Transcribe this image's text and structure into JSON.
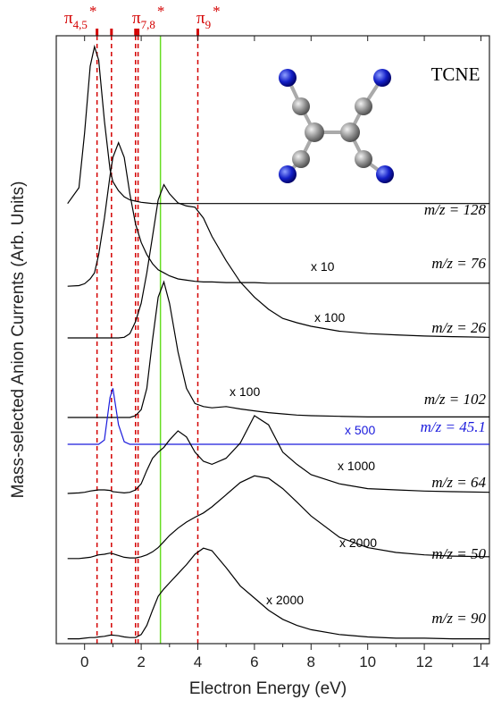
{
  "chart_data": {
    "type": "line",
    "molecule": "TCNE",
    "xlabel": "Electron Energy (eV)",
    "ylabel": "Mass-selected Anion Currents (Arb. Units)",
    "xlim": [
      -1,
      14.3
    ],
    "ylim": [
      0,
      100
    ],
    "xticks": [
      0,
      2,
      4,
      6,
      8,
      10,
      12,
      14
    ],
    "xticks_minor": [
      1,
      3,
      5,
      7,
      9,
      11,
      13
    ],
    "x": [
      -0.6,
      -0.2,
      0,
      0.2,
      0.35,
      0.5,
      0.7,
      0.9,
      1.0,
      1.2,
      1.4,
      1.6,
      1.8,
      2.0,
      2.2,
      2.4,
      2.6,
      2.8,
      3.0,
      3.3,
      3.6,
      3.9,
      4.2,
      4.5,
      5,
      5.5,
      6,
      6.5,
      7,
      7.5,
      8,
      9,
      10,
      11,
      12,
      13,
      14.3
    ],
    "series": [
      {
        "name": "m/z = 128",
        "color": "#000000",
        "values": [
          72.4,
          75,
          84,
          95,
          98.2,
          96,
          86,
          78,
          76,
          74.5,
          73.5,
          73,
          72.8,
          72.6,
          72.5,
          72.4,
          72.4,
          72.4,
          72.4,
          72.4,
          72.4,
          72.4,
          72.4,
          72.4,
          72.4,
          72.4,
          72.4,
          72.4,
          72.4,
          72.4,
          72.4,
          72.4,
          72.4,
          72.4,
          72.4,
          72.4,
          72.4
        ]
      },
      {
        "name": "m/z = 76",
        "color": "#000000",
        "scale": "x 10",
        "values": [
          58.8,
          58.9,
          59.2,
          60,
          61,
          64,
          70,
          77,
          80,
          82.4,
          80,
          74,
          69,
          66,
          64,
          62.5,
          61.5,
          61,
          60.5,
          60,
          59.8,
          59.6,
          59.5,
          59.5,
          59.4,
          59.4,
          59.4,
          59.3,
          59.3,
          59.3,
          59.3,
          59.3,
          59.3,
          59.3,
          59.3,
          59.3,
          59.3
        ]
      },
      {
        "name": "m/z = 26",
        "color": "#000000",
        "scale": "x 100",
        "values": [
          50.3,
          50.3,
          50.3,
          50.3,
          50.3,
          50.3,
          50.3,
          50.3,
          50.3,
          50.3,
          50.4,
          51,
          53,
          56,
          61,
          67,
          73,
          75.5,
          74,
          72.5,
          72,
          71.8,
          70,
          67,
          63,
          59.5,
          57,
          55,
          53.5,
          52.8,
          52.2,
          51.4,
          51,
          50.8,
          50.6,
          50.5,
          50.4
        ]
      },
      {
        "name": "m/z = 102",
        "color": "#000000",
        "scale": "x 100",
        "values": [
          37.2,
          37.2,
          37.2,
          37.2,
          37.2,
          37.2,
          37.2,
          37.2,
          37.2,
          37.2,
          37.2,
          37.2,
          37.5,
          38.5,
          42,
          50,
          57,
          59.5,
          56,
          48,
          42,
          39.5,
          39,
          38.8,
          39,
          38.6,
          38.3,
          38,
          37.8,
          37.6,
          37.5,
          37.4,
          37.3,
          37.3,
          37.3,
          37.3,
          37.3
        ]
      },
      {
        "name": "m/z = 45.1",
        "color": "#1a1adc",
        "scale": "x 500",
        "values": [
          32.8,
          32.8,
          32.8,
          32.8,
          32.8,
          32.8,
          33.5,
          40.5,
          42,
          36,
          33.2,
          32.8,
          32.8,
          32.8,
          32.8,
          32.8,
          32.8,
          32.8,
          32.8,
          32.8,
          32.8,
          32.8,
          32.8,
          32.8,
          32.8,
          32.8,
          32.8,
          32.8,
          32.8,
          32.8,
          32.8,
          32.8,
          32.8,
          32.8,
          32.8,
          32.8,
          32.8
        ]
      },
      {
        "name": "m/z = 64",
        "color": "#000000",
        "scale": "x 1000",
        "values": [
          24.7,
          24.8,
          24.9,
          25.1,
          25.2,
          25.3,
          25.3,
          25.2,
          25,
          24.9,
          24.8,
          24.9,
          25.3,
          26.3,
          28.5,
          30.5,
          31.5,
          32.3,
          33.5,
          35,
          34,
          31.5,
          30,
          29.5,
          30.5,
          33,
          37.5,
          36,
          31.5,
          29.5,
          27.8,
          26.3,
          25.5,
          25.3,
          25.1,
          25,
          24.9
        ]
      },
      {
        "name": "m/z = 50",
        "color": "#000000",
        "scale": "x 2000",
        "values": [
          14,
          14,
          14.1,
          14.2,
          14.4,
          14.6,
          14.7,
          14.9,
          14.8,
          14.5,
          14.2,
          14.1,
          14.1,
          14.3,
          14.6,
          15.1,
          15.8,
          16.8,
          17.8,
          19,
          20,
          20.8,
          21.5,
          22.5,
          24.5,
          26.5,
          27.6,
          27.2,
          25.5,
          23.3,
          21,
          17.5,
          15.8,
          15,
          14.6,
          14.4,
          14.3
        ]
      },
      {
        "name": "m/z = 90",
        "color": "#000000",
        "scale": "x 2000",
        "values": [
          0.8,
          0.8,
          0.9,
          1.0,
          1.0,
          1.1,
          1.2,
          1.4,
          1.4,
          1.3,
          1.1,
          1.0,
          1.0,
          1.5,
          3,
          5.5,
          7.8,
          9,
          10,
          11.5,
          13,
          14.7,
          15.7,
          15.3,
          12.5,
          9.5,
          7.5,
          5.5,
          4,
          3,
          2.3,
          1.5,
          1.1,
          0.9,
          0.9,
          0.8,
          0.8
        ]
      }
    ],
    "vlines": [
      {
        "x": 0.44,
        "color": "#d40000",
        "style": "dashed"
      },
      {
        "x": 0.95,
        "color": "#d40000",
        "style": "dashed"
      },
      {
        "x": 1.8,
        "color": "#d40000",
        "style": "dashed"
      },
      {
        "x": 1.89,
        "color": "#d40000",
        "style": "dashed"
      },
      {
        "x": 2.68,
        "color": "#66dd22",
        "style": "solid"
      },
      {
        "x": 4.0,
        "color": "#d40000",
        "style": "dashed"
      }
    ],
    "orbital_labels": [
      {
        "symbol": "π",
        "sub": "4,5",
        "sup": "*"
      },
      {
        "symbol": "π",
        "sub": "7,8",
        "sup": "*"
      },
      {
        "symbol": "π",
        "sub": "9",
        "sup": "*"
      }
    ]
  }
}
